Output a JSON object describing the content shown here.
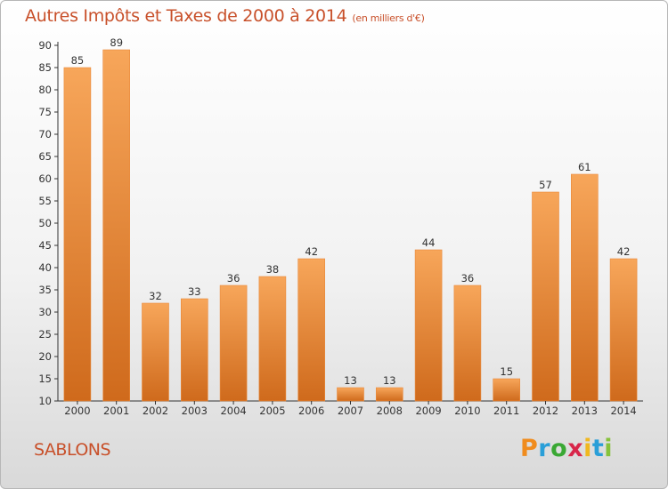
{
  "title": "Autres Impôts et Taxes de 2000 à 2014",
  "subtitle": "(en milliers d'€)",
  "commune": "SABLONS",
  "logo": {
    "letters": [
      "P",
      "r",
      "o",
      "x",
      "i",
      "t",
      "i"
    ],
    "colors": [
      "#f08c1e",
      "#2a9fd8",
      "#3aa834",
      "#d8264a",
      "#f0b820",
      "#2a9fd8",
      "#86c23a"
    ]
  },
  "colors": {
    "bar_light": "#f7a65a",
    "bar_dark": "#cf6a1c",
    "title": "#c8502a"
  },
  "chart_data": {
    "type": "bar",
    "title": "Autres Impôts et Taxes de 2000 à 2014",
    "subtitle": "(en milliers d'€)",
    "categories": [
      "2000",
      "2001",
      "2002",
      "2003",
      "2004",
      "2005",
      "2006",
      "2007",
      "2008",
      "2009",
      "2010",
      "2011",
      "2012",
      "2013",
      "2014"
    ],
    "values": [
      85,
      89,
      32,
      33,
      36,
      38,
      42,
      13,
      13,
      44,
      36,
      15,
      57,
      61,
      42
    ],
    "ylim": [
      10,
      90
    ],
    "yticks": [
      "10",
      "15",
      "20",
      "25",
      "30",
      "35",
      "40",
      "45",
      "50",
      "55",
      "60",
      "65",
      "70",
      "75",
      "80",
      "85",
      "90"
    ],
    "grid": false,
    "legend": "none"
  }
}
